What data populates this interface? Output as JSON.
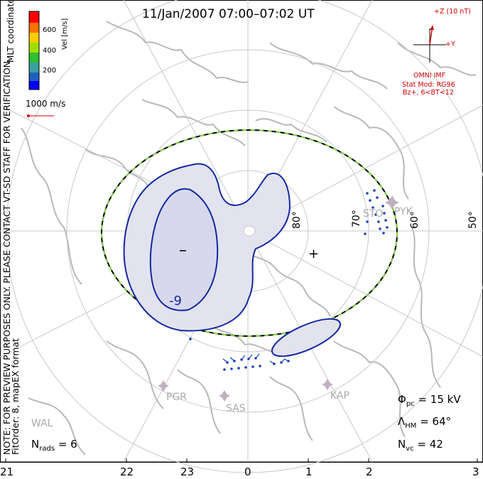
{
  "title": "11/Jan/2007 07:00–07:02 UT",
  "side_note": "NOTE: FOR PREVIEW PURPOSES ONLY. PLEASE CONTACT VT-SD STAFF FOR VERIFICATION.",
  "fit_order": "FitOrder: 8, mapEX format",
  "coords": "MLT coordinates",
  "colorbar": {
    "label": "Vel [m/s]",
    "ticks": [
      "600",
      "400",
      "200"
    ],
    "colors": [
      "#0000ff",
      "#2060c0",
      "#3aa0a0",
      "#30c030",
      "#a0e000",
      "#ffcc00",
      "#ff7000",
      "#ff0000"
    ]
  },
  "ref_vector": {
    "label": "1000 m/s"
  },
  "imf": {
    "z_label": "+Z (10 nT)",
    "y_label": "+Y",
    "source": "OMNI IMF",
    "model": "Stat Mod: RG96",
    "condition": "Bz+, 6<BT<12"
  },
  "lat_labels": [
    "80°",
    "70°",
    "60°",
    "50°"
  ],
  "mlt_labels": [
    "21",
    "22",
    "23",
    "0",
    "1",
    "2",
    "3"
  ],
  "stations": [
    "STO",
    "PYK",
    "PGR",
    "SAS",
    "KAP",
    "WAL"
  ],
  "contour_labels": {
    "min_sign": "–",
    "max_sign": "+",
    "min_value": "-9"
  },
  "stats": {
    "nrads_sym": "N",
    "nrads_sub": "rads",
    "nrads_val": "= 6",
    "phi_sym": "Φ",
    "phi_sub": "pc",
    "phi_val": "= 15 kV",
    "lambda_sym": "Λ",
    "lambda_sub": "HM",
    "lambda_val": "= 64°",
    "nvc_sym": "N",
    "nvc_sub": "vc",
    "nvc_val": "= 42"
  }
}
